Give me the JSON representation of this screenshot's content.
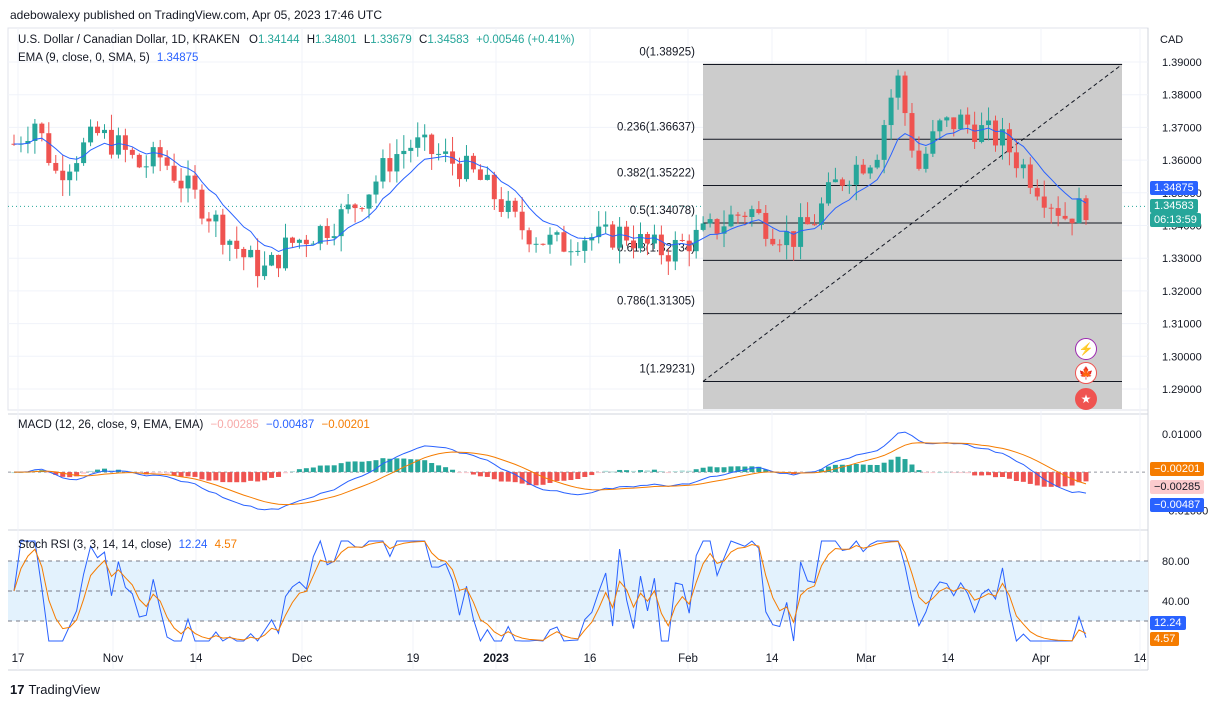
{
  "header": {
    "published": "adebowalexy published on TradingView.com, Apr 05, 2023 17:46 UTC",
    "symbol": "U.S. Dollar / Canadian Dollar, 1D, KRAKEN",
    "ohlc": {
      "O": "1.34144",
      "H": "1.34801",
      "L": "1.33679",
      "C": "1.34583",
      "change": "+0.00546 (+0.41%)"
    },
    "ema_label": "EMA (9, close, 0, SMA, 5)",
    "ema_value": "1.34875",
    "currency": "CAD"
  },
  "price_axis": [
    "1.39000",
    "1.38000",
    "1.37000",
    "1.36000",
    "1.35000",
    "1.34000",
    "1.33000",
    "1.32000",
    "1.31000",
    "1.30000",
    "1.29000"
  ],
  "price_tags": {
    "ema": "1.34875",
    "close": "1.34583",
    "countdown": "06:13:59"
  },
  "fib_levels": [
    {
      "label": "0(1.38925)",
      "price": 1.38925
    },
    {
      "label": "0.236(1.36637)",
      "price": 1.36637
    },
    {
      "label": "0.382(1.35222)",
      "price": 1.35222
    },
    {
      "label": "0.5(1.34078)",
      "price": 1.34078
    },
    {
      "label": "0.618(1.32934)",
      "price": 1.32934
    },
    {
      "label": "0.786(1.31305)",
      "price": 1.31305
    },
    {
      "label": "1(1.29231)",
      "price": 1.29231
    }
  ],
  "macd": {
    "label": "MACD (12, 26, close, 9, EMA, EMA)",
    "hist": "−0.00285",
    "macd": "−0.00487",
    "signal": "−0.00201",
    "axis": [
      "0.01000",
      "−0.01000"
    ],
    "tags": {
      "signal": "−0.00201",
      "hist": "−0.00285",
      "macd": "−0.00487"
    }
  },
  "stoch": {
    "label": "Stoch RSI (3, 3, 14, 14, close)",
    "k": "12.24",
    "d": "4.57",
    "axis": [
      "80.00",
      "40.00"
    ],
    "tags": {
      "k": "12.24",
      "d": "4.57"
    }
  },
  "time_axis": [
    "17",
    "Nov",
    "14",
    "Dec",
    "19",
    "2023",
    "16",
    "Feb",
    "14",
    "Mar",
    "14",
    "Apr",
    "14"
  ],
  "footer": {
    "brand": "TradingView"
  },
  "colors": {
    "up": "#26a69a",
    "down": "#ef5350",
    "ema": "#2962ff",
    "signal": "#f57c00",
    "fib_bg": "#cccccc",
    "stoch_bg": "#e3f2fd"
  },
  "chart_data": {
    "type": "candlestick",
    "title": "U.S. Dollar / Canadian Dollar, 1D, KRAKEN",
    "ylim": [
      1.285,
      1.393
    ],
    "x": [
      "Oct 17",
      "Nov",
      "Nov 14",
      "Dec",
      "Dec 19",
      "2023",
      "Jan 16",
      "Feb",
      "Feb 14",
      "Mar",
      "Mar 14",
      "Apr",
      "Apr 14"
    ],
    "close_path": [
      1.365,
      1.372,
      1.356,
      1.362,
      1.368,
      1.364,
      1.358,
      1.361,
      1.353,
      1.346,
      1.338,
      1.33,
      1.326,
      1.334,
      1.337,
      1.34,
      1.345,
      1.352,
      1.361,
      1.365,
      1.362,
      1.359,
      1.355,
      1.348,
      1.34,
      1.336,
      1.334,
      1.337,
      1.336,
      1.338,
      1.334,
      1.332,
      1.335,
      1.338,
      1.342,
      1.345,
      1.339,
      1.336,
      1.341,
      1.352,
      1.358,
      1.362,
      1.386,
      1.357,
      1.37,
      1.372,
      1.369,
      1.366,
      1.358,
      1.35,
      1.343,
      1.346
    ],
    "series": [
      {
        "name": "EMA (9, close, 0, SMA, 5)",
        "last": 1.34875
      },
      {
        "name": "MACD",
        "last": -0.00487
      },
      {
        "name": "Signal",
        "last": -0.00201
      },
      {
        "name": "Histogram",
        "last": -0.00285
      },
      {
        "name": "Stoch RSI %K",
        "last": 12.24
      },
      {
        "name": "Stoch RSI %D",
        "last": 4.57
      }
    ]
  }
}
